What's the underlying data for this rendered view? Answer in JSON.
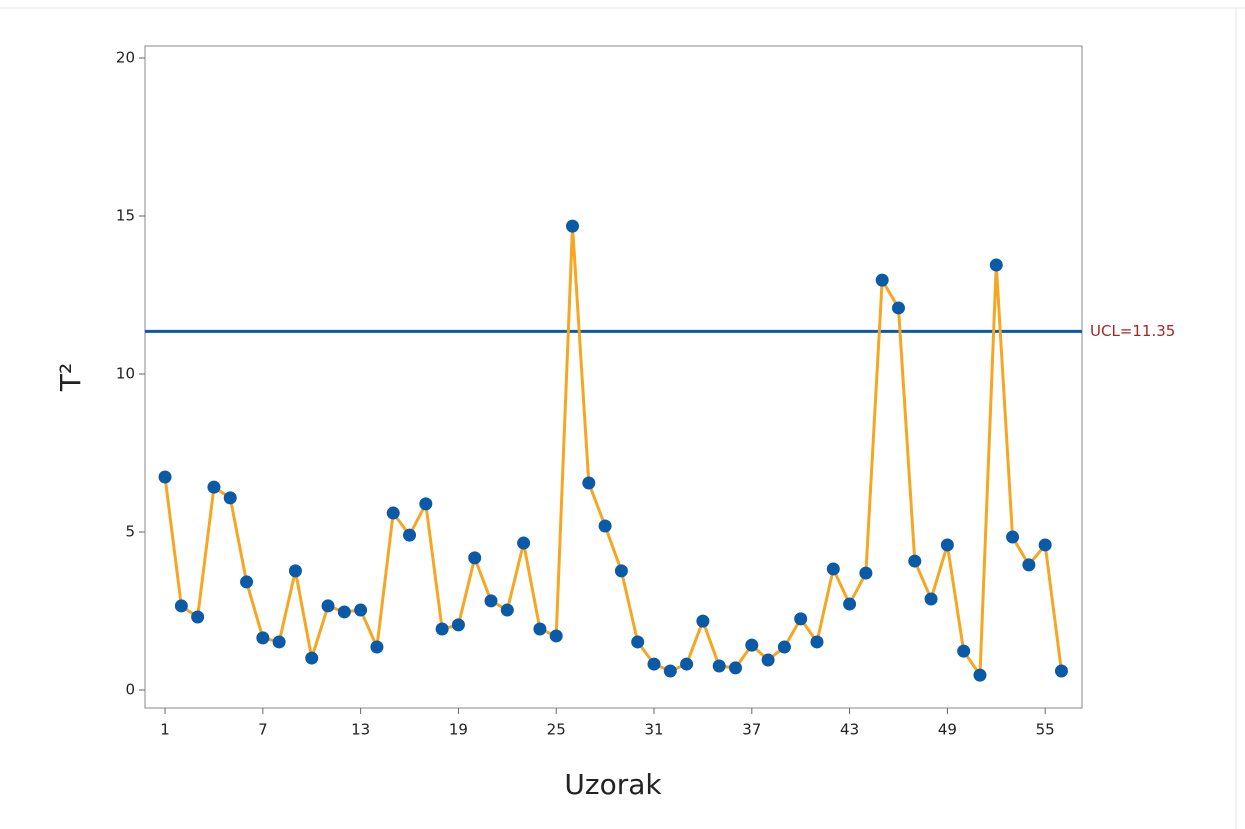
{
  "chart_data": {
    "type": "line",
    "x_label": "Uzorak",
    "y_label": "T²",
    "x": [
      1,
      2,
      3,
      4,
      5,
      6,
      7,
      8,
      9,
      10,
      11,
      12,
      13,
      14,
      15,
      16,
      17,
      18,
      19,
      20,
      21,
      22,
      23,
      24,
      25,
      26,
      27,
      28,
      29,
      30,
      31,
      32,
      33,
      34,
      35,
      36,
      37,
      38,
      39,
      40,
      41,
      42,
      43,
      44,
      45,
      46,
      47,
      48,
      49,
      50,
      51,
      52,
      53,
      54,
      55,
      56
    ],
    "series": [
      {
        "name": "T²",
        "color": "#f5a623",
        "marker_color": "#0a5aa8",
        "values": [
          6.74,
          2.66,
          2.31,
          6.42,
          6.08,
          3.42,
          1.65,
          1.52,
          3.77,
          1.01,
          2.66,
          2.47,
          2.53,
          1.36,
          5.6,
          4.9,
          5.89,
          1.93,
          2.06,
          4.18,
          2.82,
          2.53,
          4.65,
          1.93,
          1.71,
          14.68,
          6.55,
          5.19,
          3.77,
          1.52,
          0.82,
          0.6,
          0.82,
          2.18,
          0.76,
          0.7,
          1.42,
          0.95,
          1.36,
          2.25,
          1.52,
          3.83,
          2.72,
          3.7,
          12.97,
          12.09,
          4.08,
          2.88,
          4.59,
          1.23,
          0.47,
          13.45,
          4.84,
          3.96,
          4.59,
          0.6
        ]
      }
    ],
    "ucl": {
      "value": 11.35,
      "label": "UCL=11.35",
      "color": "#0a5aa8",
      "label_color": "#a3262a"
    },
    "xlim": [
      -0.23,
      57.26
    ],
    "xticks": [
      1,
      7,
      13,
      19,
      25,
      31,
      37,
      43,
      49,
      55
    ],
    "ylim": [
      -0.57,
      20.38
    ],
    "yticks": [
      0,
      5,
      10,
      15,
      20
    ]
  }
}
